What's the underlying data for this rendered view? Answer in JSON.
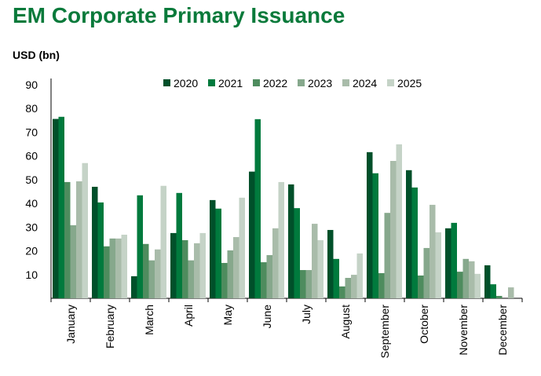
{
  "chart_data": {
    "type": "bar",
    "title": "EM Corporate Primary Issuance",
    "ylabel": "USD (bn)",
    "ylim": [
      0,
      90
    ],
    "yticks": [
      10,
      20,
      30,
      40,
      50,
      60,
      70,
      80,
      90
    ],
    "grid": false,
    "legend_placement": "top",
    "categories": [
      "January",
      "February",
      "March",
      "April",
      "May",
      "June",
      "July",
      "August",
      "September",
      "October",
      "November",
      "December"
    ],
    "series": [
      {
        "name": "2020",
        "color": "#00502a",
        "values": [
          75.6,
          47,
          9.3,
          27.5,
          41.4,
          53.4,
          48,
          28.8,
          61.6,
          54,
          29.5,
          13.9
        ]
      },
      {
        "name": "2021",
        "color": "#007a3d",
        "values": [
          76.5,
          40.4,
          43.4,
          44.4,
          37.8,
          75.5,
          38,
          16.6,
          52.7,
          46.7,
          31.8,
          5.9
        ]
      },
      {
        "name": "2022",
        "color": "#4e8c5e",
        "values": [
          49,
          21.9,
          22.9,
          24.5,
          14.9,
          15.2,
          11.9,
          5,
          10.6,
          9.6,
          11.2,
          1
        ]
      },
      {
        "name": "2023",
        "color": "#86a88c",
        "values": [
          30.8,
          25.2,
          16,
          16,
          20.2,
          18.2,
          11.9,
          8.6,
          36,
          21.2,
          16.6,
          0
        ]
      },
      {
        "name": "2024",
        "color": "#a9bcaa",
        "values": [
          49.3,
          25.2,
          20.6,
          23.2,
          25.8,
          29.5,
          31.4,
          9.9,
          57.9,
          39.4,
          15.6,
          4.6
        ]
      },
      {
        "name": "2025",
        "color": "#c5d3c7",
        "values": [
          57,
          26.8,
          47.4,
          27.5,
          42.4,
          49,
          24.5,
          18.9,
          64.9,
          27.8,
          10.3,
          0
        ]
      }
    ]
  }
}
